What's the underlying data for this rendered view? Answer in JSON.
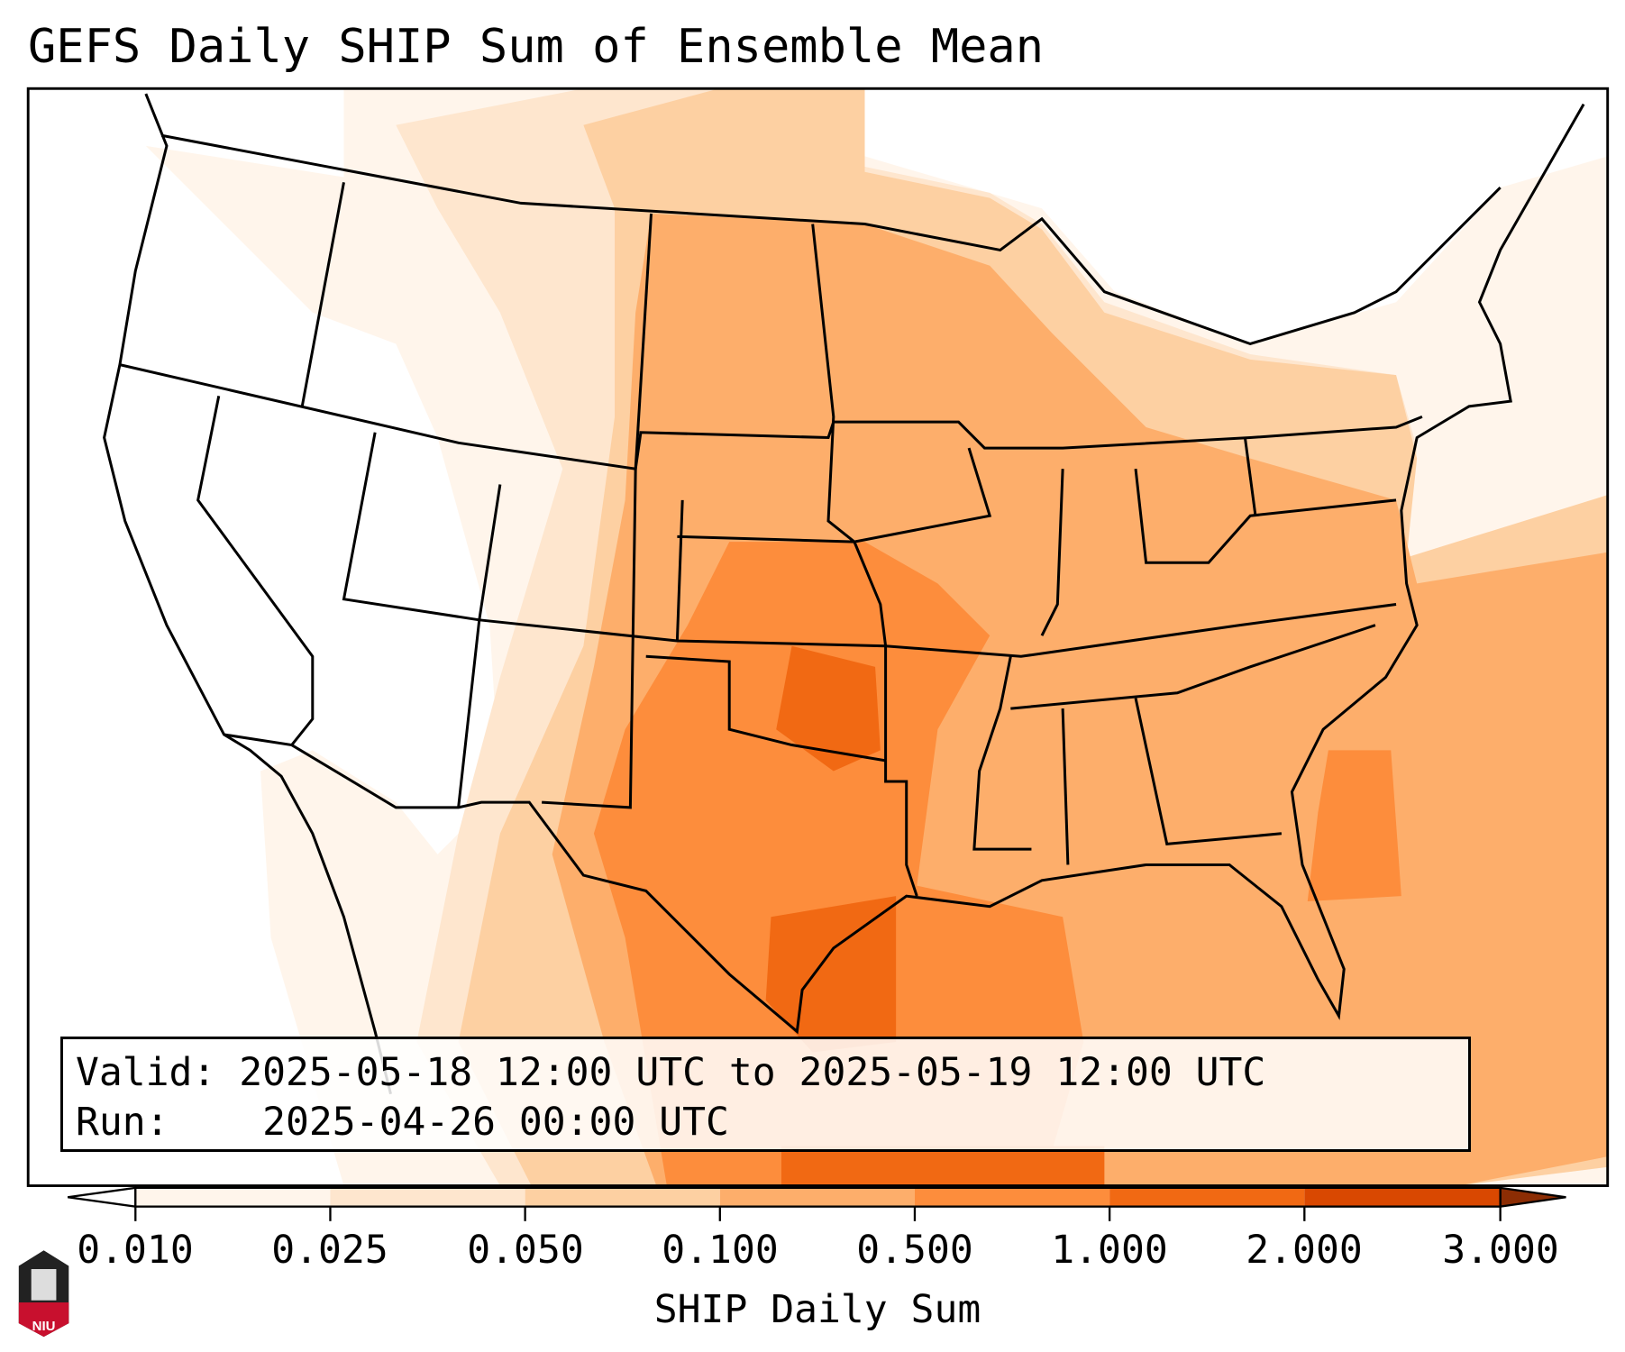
{
  "title": "GEFS Daily SHIP Sum of Ensemble Mean",
  "legend": {
    "valid_label": "Valid:",
    "valid_value": "2025-05-18 12:00 UTC to 2025-05-19 12:00 UTC",
    "run_label": "Run:",
    "run_value": "2025-04-26 00:00 UTC"
  },
  "colorbar": {
    "label": "SHIP Daily Sum",
    "ticks": [
      "0.010",
      "0.025",
      "0.050",
      "0.100",
      "0.500",
      "1.000",
      "2.000",
      "3.000"
    ],
    "colors": [
      "#fff5eb",
      "#fee6ce",
      "#fdd0a2",
      "#fdae6b",
      "#fd8d3c",
      "#f16913",
      "#d94801"
    ],
    "under_color": "#ffffff",
    "over_color": "#8c2d04"
  },
  "logo": {
    "text": "NIU"
  }
}
